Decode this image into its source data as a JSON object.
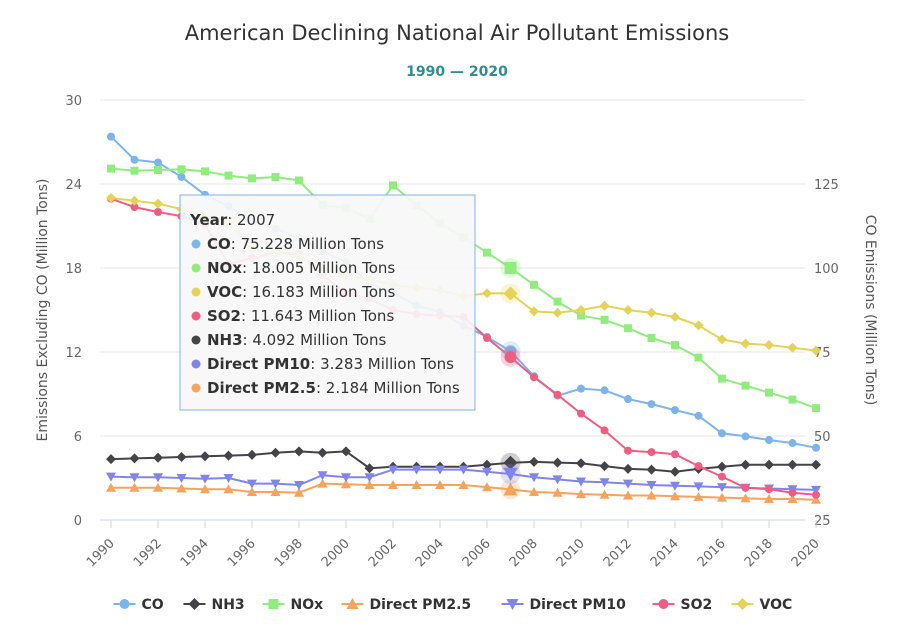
{
  "chart_data": {
    "type": "line",
    "title": "American Declining National Air Pollutant Emissions",
    "subtitle": "1990 — 2020",
    "ylabel": "Emissions Excluding CO (Million Tons)",
    "y2label": "CO Emissions (Million Tons)",
    "ylim": [
      0,
      30
    ],
    "y2lim": [
      25,
      150
    ],
    "yticks": [
      "0",
      "6",
      "12",
      "18",
      "24",
      "30"
    ],
    "y2ticks": [
      "25",
      "50",
      "75",
      "100",
      "125"
    ],
    "xlim": [
      1990,
      2020
    ],
    "xticks": [
      "1990",
      "1992",
      "1994",
      "1996",
      "1998",
      "2000",
      "2002",
      "2004",
      "2006",
      "2008",
      "2010",
      "2012",
      "2014",
      "2016",
      "2018",
      "2020"
    ],
    "grid": "horizontal",
    "legend_position": "bottom",
    "x": [
      1990,
      1991,
      1992,
      1993,
      1994,
      1995,
      1996,
      1997,
      1998,
      1999,
      2000,
      2001,
      2002,
      2003,
      2004,
      2005,
      2006,
      2007,
      2008,
      2009,
      2010,
      2011,
      2012,
      2013,
      2014,
      2015,
      2016,
      2017,
      2018,
      2019,
      2020
    ],
    "series": [
      {
        "name": "CO",
        "axis": "right",
        "color": "#7cb5ec",
        "marker": "circle",
        "values": [
          139.1,
          132.2,
          131.4,
          127.1,
          121.8,
          118.4,
          114.1,
          111.7,
          109.0,
          105.0,
          101.8,
          95.4,
          92.6,
          88.8,
          86.9,
          82.9,
          79.5,
          75.228,
          67.8,
          62.0,
          64.1,
          63.6,
          61.0,
          59.5,
          57.7,
          56.0,
          50.8,
          49.9,
          48.8,
          47.9,
          46.5
        ]
      },
      {
        "name": "NH3",
        "axis": "left",
        "color": "#434348",
        "marker": "diamond",
        "values": [
          4.35,
          4.4,
          4.45,
          4.5,
          4.55,
          4.6,
          4.65,
          4.8,
          4.9,
          4.8,
          4.9,
          3.7,
          3.8,
          3.8,
          3.8,
          3.8,
          3.95,
          4.092,
          4.15,
          4.1,
          4.05,
          3.85,
          3.65,
          3.6,
          3.45,
          3.65,
          3.8,
          3.95,
          3.95,
          3.95,
          3.95
        ]
      },
      {
        "name": "NOx",
        "axis": "left",
        "color": "#90ed7d",
        "marker": "square",
        "values": [
          25.1,
          24.95,
          25.0,
          25.05,
          24.9,
          24.6,
          24.4,
          24.5,
          24.25,
          22.5,
          22.3,
          21.5,
          23.9,
          22.5,
          21.2,
          20.2,
          19.1,
          18.005,
          16.8,
          15.6,
          14.6,
          14.3,
          13.7,
          13.0,
          12.5,
          11.6,
          10.1,
          9.6,
          9.1,
          8.6,
          7.99
        ]
      },
      {
        "name": "Direct PM2.5",
        "axis": "left",
        "color": "#f7a35c",
        "marker": "triangle",
        "values": [
          2.3,
          2.3,
          2.3,
          2.25,
          2.2,
          2.2,
          2.0,
          2.0,
          1.95,
          2.6,
          2.55,
          2.5,
          2.5,
          2.5,
          2.5,
          2.5,
          2.35,
          2.184,
          2.0,
          1.95,
          1.85,
          1.8,
          1.75,
          1.75,
          1.7,
          1.65,
          1.6,
          1.55,
          1.5,
          1.5,
          1.45
        ]
      },
      {
        "name": "Direct PM10",
        "axis": "left",
        "color": "#8085e9",
        "marker": "triangle-down",
        "values": [
          3.1,
          3.05,
          3.05,
          3.0,
          2.95,
          3.0,
          2.6,
          2.6,
          2.5,
          3.2,
          3.05,
          3.05,
          3.6,
          3.6,
          3.6,
          3.6,
          3.45,
          3.283,
          3.05,
          2.9,
          2.75,
          2.7,
          2.6,
          2.5,
          2.45,
          2.4,
          2.35,
          2.3,
          2.25,
          2.2,
          2.15
        ]
      },
      {
        "name": "SO2",
        "axis": "left",
        "color": "#f15c80",
        "marker": "circle",
        "values": [
          22.95,
          22.35,
          22.0,
          21.7,
          21.1,
          18.3,
          18.7,
          19.1,
          19.0,
          17.5,
          16.2,
          15.8,
          15.0,
          14.7,
          14.6,
          14.5,
          13.0,
          11.643,
          10.2,
          8.95,
          7.6,
          6.4,
          4.95,
          4.85,
          4.7,
          3.85,
          3.1,
          2.3,
          2.2,
          1.95,
          1.8
        ]
      },
      {
        "name": "VOC",
        "axis": "left",
        "color": "#e4d354",
        "marker": "diamond",
        "values": [
          23.0,
          22.8,
          22.6,
          22.2,
          21.7,
          21.3,
          19.3,
          19.1,
          18.8,
          17.9,
          17.5,
          17.2,
          16.8,
          16.6,
          16.4,
          16.0,
          16.2,
          16.183,
          14.9,
          14.8,
          15.0,
          15.3,
          15.0,
          14.8,
          14.5,
          13.9,
          12.9,
          12.6,
          12.5,
          12.3,
          12.1
        ]
      }
    ],
    "tooltip": {
      "year_label": "Year",
      "year": "2007",
      "rows": [
        {
          "name": "CO",
          "value_text": "75.228 Million Tons",
          "color": "#7cb5ec"
        },
        {
          "name": "NOx",
          "value_text": "18.005 Million Tons",
          "color": "#90ed7d"
        },
        {
          "name": "VOC",
          "value_text": "16.183 Million Tons",
          "color": "#e4d354"
        },
        {
          "name": "SO2",
          "value_text": "11.643 Million Tons",
          "color": "#f15c80"
        },
        {
          "name": "NH3",
          "value_text": "4.092 Million Tons",
          "color": "#434348"
        },
        {
          "name": "Direct PM10",
          "value_text": "3.283 Million Tons",
          "color": "#8085e9"
        },
        {
          "name": "Direct PM2.5",
          "value_text": "2.184 Million Tons",
          "color": "#f7a35c"
        }
      ]
    },
    "hover_year": 2007
  }
}
